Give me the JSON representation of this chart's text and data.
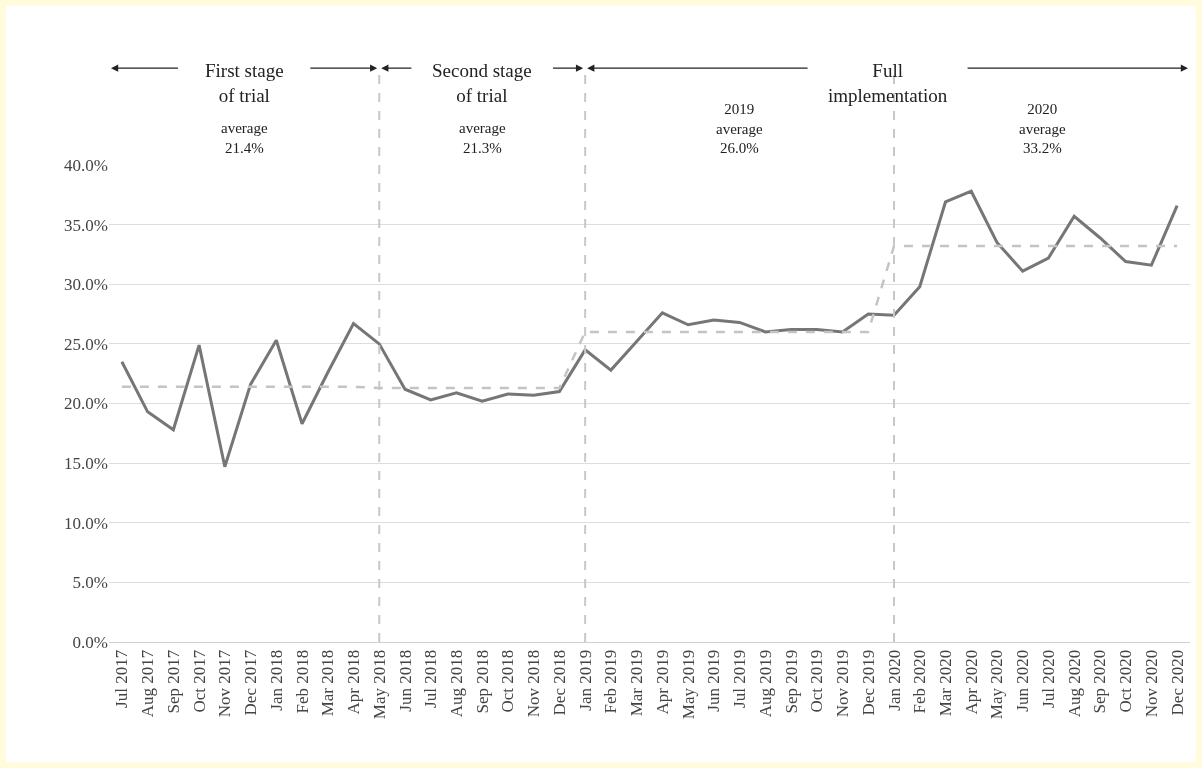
{
  "chart_data": {
    "type": "line",
    "categories": [
      "Jul 2017",
      "Aug 2017",
      "Sep 2017",
      "Oct 2017",
      "Nov 2017",
      "Dec 2017",
      "Jan 2018",
      "Feb 2018",
      "Mar 2018",
      "Apr 2018",
      "May 2018",
      "Jun 2018",
      "Jul 2018",
      "Aug 2018",
      "Sep 2018",
      "Oct 2018",
      "Nov 2018",
      "Dec 2018",
      "Jan 2019",
      "Feb 2019",
      "Mar 2019",
      "Apr 2019",
      "May 2019",
      "Jun 2019",
      "Jul 2019",
      "Aug 2019",
      "Sep 2019",
      "Oct 2019",
      "Nov 2019",
      "Dec 2019",
      "Jan 2020",
      "Feb 2020",
      "Mar 2020",
      "Apr 2020",
      "May 2020",
      "Jun 2020",
      "Jul 2020",
      "Aug 2020",
      "Sep 2020",
      "Oct 2020",
      "Nov 2020",
      "Dec 2020"
    ],
    "series": [
      {
        "color": "#767676",
        "line_style": "solid",
        "values": [
          23.5,
          19.3,
          17.8,
          24.9,
          14.7,
          21.6,
          25.3,
          18.3,
          22.6,
          26.7,
          25.0,
          21.2,
          20.3,
          20.9,
          20.2,
          20.8,
          20.7,
          21.0,
          24.5,
          22.8,
          25.2,
          27.6,
          26.6,
          27.0,
          26.8,
          26.0,
          26.2,
          26.2,
          26.0,
          27.5,
          27.4,
          29.8,
          36.9,
          37.8,
          33.5,
          31.1,
          32.2,
          35.7,
          33.9,
          31.9,
          31.6,
          36.6
        ]
      },
      {
        "color": "#c4c4c4",
        "line_style": "dashed",
        "values": [
          21.4,
          21.4,
          21.4,
          21.4,
          21.4,
          21.4,
          21.4,
          21.4,
          21.4,
          21.4,
          21.3,
          21.3,
          21.3,
          21.3,
          21.3,
          21.3,
          21.3,
          21.3,
          26.0,
          26.0,
          26.0,
          26.0,
          26.0,
          26.0,
          26.0,
          26.0,
          26.0,
          26.0,
          26.0,
          26.0,
          33.2,
          33.2,
          33.2,
          33.2,
          33.2,
          33.2,
          33.2,
          33.2,
          33.2,
          33.2,
          33.2,
          33.2
        ]
      }
    ],
    "ylim": [
      0,
      40
    ],
    "yticks": [
      {
        "value": 0,
        "label": "0.0%"
      },
      {
        "value": 5,
        "label": "5.0%"
      },
      {
        "value": 10,
        "label": "10.0%"
      },
      {
        "value": 15,
        "label": "15.0%"
      },
      {
        "value": 20,
        "label": "20.0%"
      },
      {
        "value": 25,
        "label": "25.0%"
      },
      {
        "value": 30,
        "label": "30.0%"
      },
      {
        "value": 35,
        "label": "35.0%"
      },
      {
        "value": 40,
        "label": "40.0%"
      }
    ],
    "ref_lines": [
      {
        "axis": "x",
        "value": "May 2018",
        "color": "#c8c8c8",
        "line_style": "dashed"
      },
      {
        "axis": "x",
        "value": "Jan 2019",
        "color": "#c8c8c8",
        "line_style": "dashed"
      },
      {
        "axis": "x",
        "value": "Jan 2020",
        "color": "#c8c8c8",
        "line_style": "dashed"
      }
    ],
    "annotations": [
      "First stage\nof trial",
      "Second stage\nof trial",
      "Full\nimplementation",
      "average\n21.4%",
      "average\n21.3%",
      "2019\naverage\n26.0%",
      "2020\naverage\n33.2%"
    ],
    "grid": "y",
    "marker": "none"
  }
}
